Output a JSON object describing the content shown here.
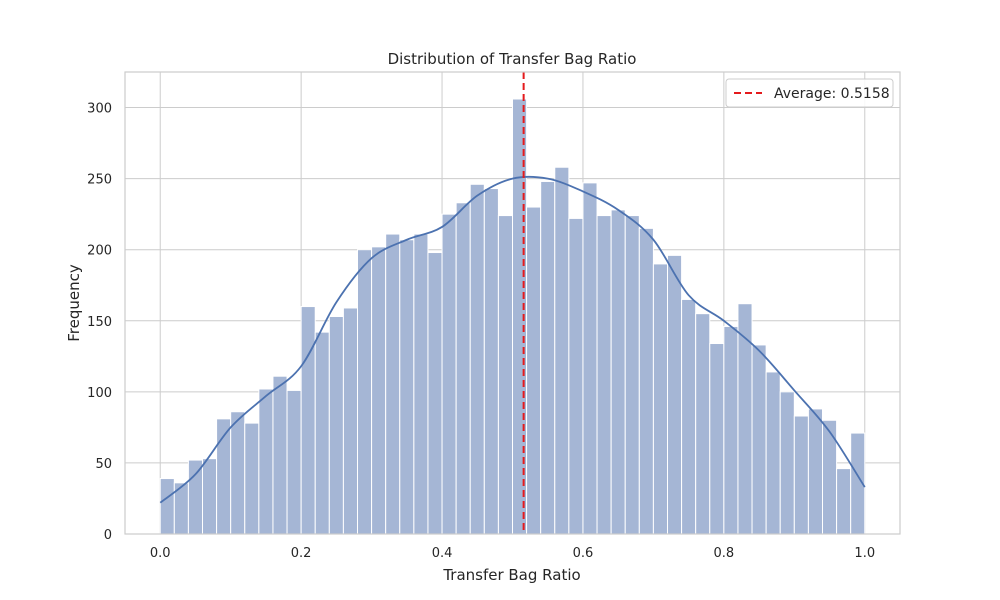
{
  "chart_data": {
    "type": "bar",
    "title": "Distribution of Transfer Bag Ratio",
    "xlabel": "Transfer Bag Ratio",
    "ylabel": "Frequency",
    "xlim": [
      -0.05,
      1.05
    ],
    "ylim": [
      0,
      325
    ],
    "xticks": [
      0.0,
      0.2,
      0.4,
      0.6,
      0.8,
      1.0
    ],
    "xtick_labels": [
      "0.0",
      "0.2",
      "0.4",
      "0.6",
      "0.8",
      "1.0"
    ],
    "yticks": [
      0,
      50,
      100,
      150,
      200,
      250,
      300
    ],
    "ytick_labels": [
      "0",
      "50",
      "100",
      "150",
      "200",
      "250",
      "300"
    ],
    "grid": true,
    "bin_edges_range": [
      0.0,
      1.0
    ],
    "bin_count": 50,
    "values": [
      39,
      36,
      52,
      53,
      81,
      86,
      78,
      102,
      111,
      101,
      160,
      142,
      153,
      159,
      200,
      202,
      211,
      207,
      211,
      198,
      225,
      233,
      246,
      243,
      224,
      306,
      230,
      248,
      258,
      222,
      247,
      224,
      228,
      224,
      215,
      190,
      196,
      165,
      155,
      134,
      146,
      162,
      133,
      114,
      100,
      83,
      88,
      80,
      46,
      71
    ],
    "kde": {
      "x": [
        0.0,
        0.05,
        0.1,
        0.15,
        0.2,
        0.25,
        0.3,
        0.35,
        0.4,
        0.45,
        0.5,
        0.55,
        0.6,
        0.65,
        0.7,
        0.75,
        0.8,
        0.85,
        0.9,
        0.95,
        1.0
      ],
      "y": [
        22,
        42,
        75,
        97,
        118,
        163,
        194,
        207,
        216,
        238,
        250,
        250,
        241,
        228,
        207,
        168,
        150,
        129,
        101,
        72,
        33
      ],
      "color": "#4c72b0"
    },
    "bar_color": "#a5b6d5",
    "average": {
      "value": 0.5158,
      "label": "Average: 0.5158",
      "color": "#e41a1c"
    },
    "legend_position": "top-right"
  }
}
